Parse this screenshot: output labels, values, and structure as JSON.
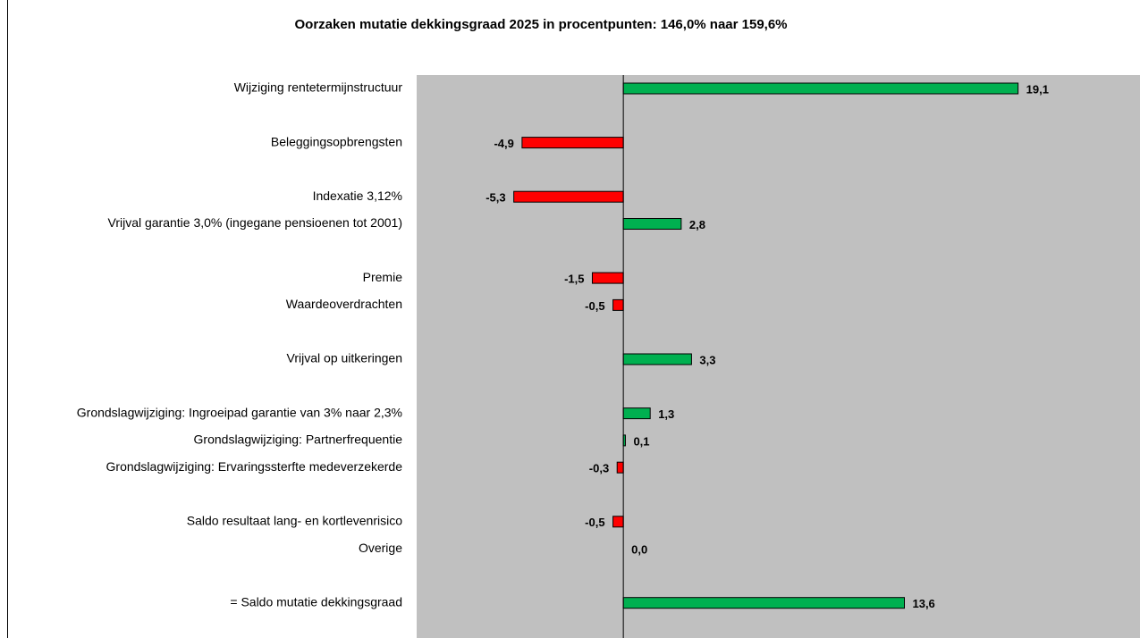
{
  "chart_data": {
    "type": "bar",
    "orientation": "horizontal",
    "title": "Oorzaken mutatie dekkingsgraad 2025 in procentpunten: 146,0% naar 159,6%",
    "categories": [
      "Wijziging rentetermijnstructuur",
      null,
      "Beleggingsopbrengsten",
      null,
      "Indexatie 3,12%",
      "Vrijval garantie 3,0% (ingegane pensioenen tot 2001)",
      null,
      "Premie",
      "Waardeoverdrachten",
      null,
      "Vrijval op uitkeringen ",
      null,
      "Grondslagwijziging: Ingroeipad garantie van 3% naar 2,3%",
      "Grondslagwijziging: Partnerfrequentie",
      "Grondslagwijziging: Ervaringssterfte medeverzekerde",
      null,
      "Saldo resultaat lang- en kortlevenrisico",
      "Overige",
      null,
      "= Saldo mutatie dekkingsgraad"
    ],
    "values": [
      19.1,
      null,
      -4.9,
      null,
      -5.3,
      2.8,
      null,
      -1.5,
      -0.5,
      null,
      3.3,
      null,
      1.3,
      0.1,
      -0.3,
      null,
      -0.5,
      0.0,
      null,
      13.6
    ],
    "value_labels": [
      "19,1",
      null,
      "-4,9",
      null,
      "-5,3",
      "2,8",
      null,
      "-1,5",
      "-0,5",
      null,
      "3,3",
      null,
      "1,3",
      "0,1",
      "-0,3",
      null,
      "-0,5",
      "0,0",
      null,
      "13,6"
    ],
    "positive_color": "#00b050",
    "negative_color": "#ff0000",
    "xlim": [
      -10,
      25
    ]
  }
}
